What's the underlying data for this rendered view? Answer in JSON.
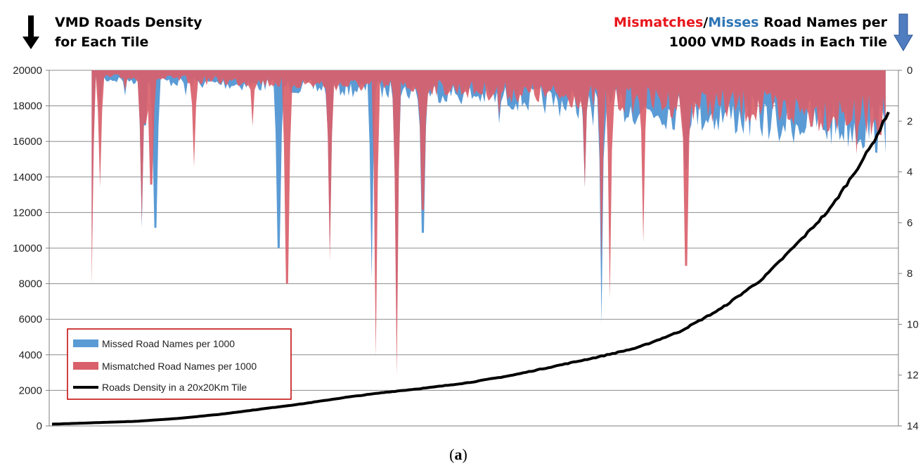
{
  "chart_data": {
    "type": "area",
    "left_axis": {
      "title_lines": [
        "VMD Roads Density",
        "for Each Tile"
      ],
      "arrow": "down",
      "ylim": [
        0,
        20000
      ],
      "ticks": [
        "0",
        "2000",
        "4000",
        "6000",
        "8000",
        "10000",
        "12000",
        "14000",
        "16000",
        "18000",
        "20000"
      ]
    },
    "right_axis": {
      "title_line1": {
        "part1": "Mismatches",
        "sep": "/",
        "part2": "Misses",
        "rest": " Road Names per"
      },
      "title_line2": "1000 VMD Roads in Each Tile",
      "arrow": "down",
      "inverted": true,
      "ylim": [
        0,
        14
      ],
      "ticks": [
        "0",
        "2",
        "4",
        "6",
        "8",
        "10",
        "12",
        "14"
      ]
    },
    "series": [
      {
        "name": "Missed Road Names per 1000",
        "color": "#5b9bd5",
        "axis": "right",
        "style": "area-from-top"
      },
      {
        "name": "Mismatched Road Names per 1000",
        "color": "#d9616b",
        "axis": "right",
        "style": "area-from-top"
      },
      {
        "name": "Roads Density in a 20x20Km Tile",
        "color": "#000000",
        "axis": "left",
        "style": "line",
        "samples_x_fraction": [
          0,
          0.05,
          0.1,
          0.15,
          0.2,
          0.25,
          0.3,
          0.35,
          0.4,
          0.45,
          0.5,
          0.55,
          0.6,
          0.65,
          0.7,
          0.75,
          0.8,
          0.85,
          0.9,
          0.93,
          0.96,
          0.98,
          0.99,
          1.0
        ],
        "values": [
          100,
          180,
          260,
          420,
          650,
          950,
          1250,
          1600,
          1900,
          2150,
          2450,
          2850,
          3350,
          3850,
          4400,
          5300,
          6600,
          8300,
          10700,
          12200,
          14300,
          15800,
          16700,
          17700
        ]
      }
    ],
    "spikes_missed": [
      [
        0.05,
        6.5
      ],
      [
        0.06,
        1.8
      ],
      [
        0.09,
        1.0
      ],
      [
        0.11,
        6.2
      ],
      [
        0.125,
        6.2
      ],
      [
        0.16,
        1.0
      ],
      [
        0.27,
        7.0
      ],
      [
        0.33,
        7.1
      ],
      [
        0.38,
        8.2
      ],
      [
        0.41,
        10.3
      ],
      [
        0.44,
        6.4
      ],
      [
        0.53,
        2.1
      ],
      [
        0.63,
        4.6
      ],
      [
        0.64,
        2.2
      ],
      [
        0.65,
        10.0
      ],
      [
        0.7,
        1.5
      ],
      [
        0.75,
        3.9
      ],
      [
        0.86,
        2.8
      ],
      [
        0.94,
        2.0
      ],
      [
        0.99,
        1.9
      ]
    ],
    "spikes_mismatched": [
      [
        0.05,
        8.5
      ],
      [
        0.06,
        4.6
      ],
      [
        0.09,
        0.8
      ],
      [
        0.11,
        6.0
      ],
      [
        0.12,
        4.5
      ],
      [
        0.17,
        3.8
      ],
      [
        0.24,
        2.2
      ],
      [
        0.28,
        8.4
      ],
      [
        0.33,
        7.5
      ],
      [
        0.385,
        11.3
      ],
      [
        0.41,
        12.0
      ],
      [
        0.44,
        5.5
      ],
      [
        0.53,
        1.8
      ],
      [
        0.63,
        4.6
      ],
      [
        0.65,
        7.6
      ],
      [
        0.66,
        9.0
      ],
      [
        0.7,
        6.8
      ],
      [
        0.75,
        7.7
      ],
      [
        0.86,
        2.0
      ],
      [
        0.95,
        3.3
      ]
    ],
    "legend": {
      "position": "bottom-left",
      "items": [
        "Missed Road Names per 1000",
        "Mismatched Road Names per 1000",
        "Roads Density in a 20x20Km Tile"
      ]
    },
    "grid": true
  },
  "caption": {
    "open": "(",
    "letter": "a",
    "close": ")"
  },
  "colors": {
    "mismatch_red": "#e8161c",
    "miss_blue": "#2e75b6",
    "arrow_blue": "#4f7dbf"
  }
}
